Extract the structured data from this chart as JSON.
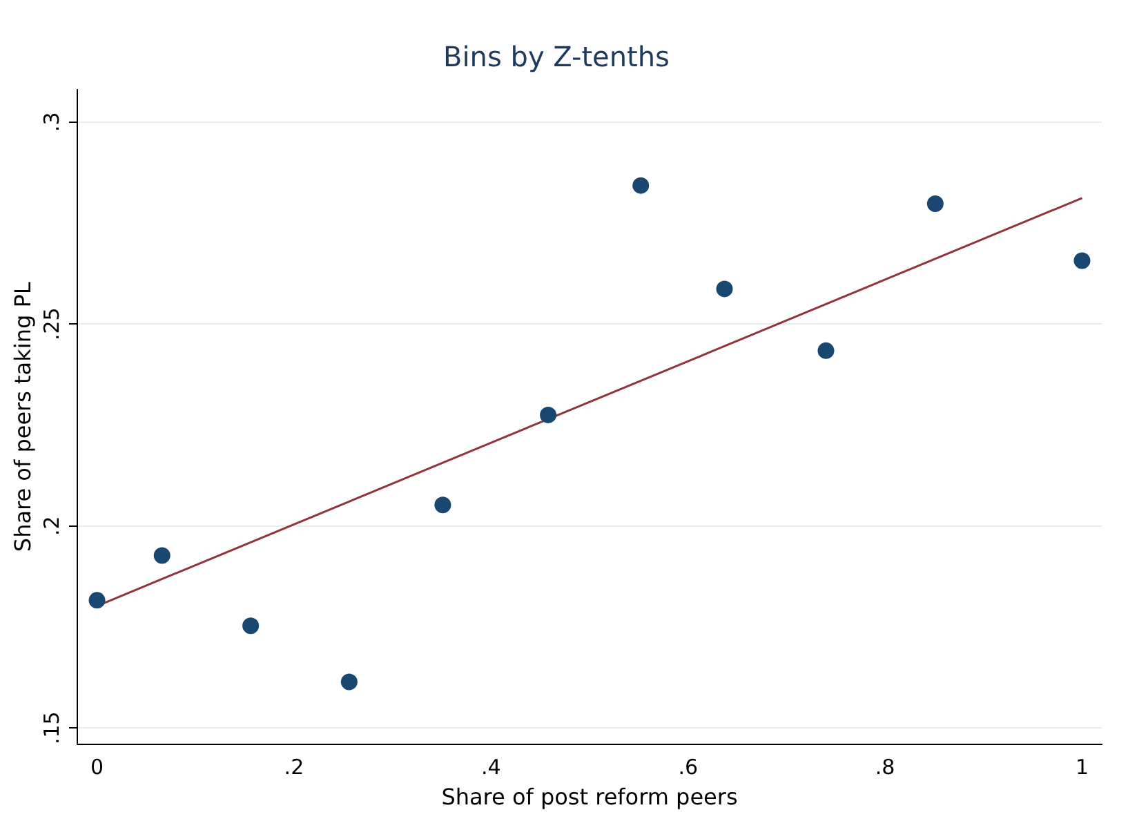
{
  "chart_data": {
    "type": "scatter",
    "title": "Bins by Z-tenths",
    "xlabel": "Share of post reform peers",
    "ylabel": "Share of peers taking PL",
    "series": [
      {
        "marker": "circle",
        "color": "#1a476f",
        "x": [
          0,
          0.066,
          0.156,
          0.256,
          0.351,
          0.458,
          0.552,
          0.637,
          0.74,
          0.851,
          1
        ],
        "values": [
          0.1816,
          0.1927,
          0.1753,
          0.1614,
          0.2052,
          0.2275,
          0.2843,
          0.2587,
          0.2434,
          0.2798,
          0.2657
        ]
      },
      {
        "type": "line",
        "marker": "none",
        "color": "#90353b",
        "x": [
          0,
          1
        ],
        "values": [
          0.1802,
          0.2812
        ]
      }
    ],
    "xlim": [
      -0.02,
      1.02
    ],
    "xticks": [
      {
        "value": 0,
        "label": "0"
      },
      {
        "value": 0.2,
        "label": ".2"
      },
      {
        "value": 0.4,
        "label": ".4"
      },
      {
        "value": 0.6,
        "label": ".6"
      },
      {
        "value": 0.8,
        "label": ".8"
      },
      {
        "value": 1,
        "label": "1"
      }
    ],
    "ylim": [
      0.146,
      0.308
    ],
    "yticks": [
      {
        "value": 0.15,
        "label": ".15"
      },
      {
        "value": 0.2,
        "label": ".2"
      },
      {
        "value": 0.25,
        "label": ".25"
      },
      {
        "value": 0.3,
        "label": ".3"
      }
    ],
    "grid": "y",
    "legend": false
  }
}
